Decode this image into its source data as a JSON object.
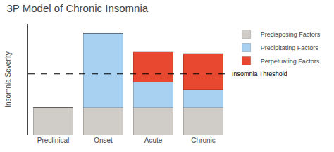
{
  "chart_data": {
    "type": "bar",
    "title": "3P Model of Chronic Insomnia",
    "ylabel": "Insomnia Severity",
    "categories": [
      "Preclinical",
      "Onset",
      "Acute",
      "Chronic"
    ],
    "series": [
      {
        "name": "Predisposing Factors",
        "color": "#d0cdc8",
        "values": [
          1.2,
          1.2,
          1.2,
          1.2
        ]
      },
      {
        "name": "Precipitating Factors",
        "color": "#a8d0f0",
        "values": [
          0.0,
          3.2,
          1.1,
          0.75
        ]
      },
      {
        "name": "Perpetuating Factors",
        "color": "#e84830",
        "values": [
          0.0,
          0.0,
          1.3,
          1.55
        ]
      }
    ],
    "stacked": true,
    "ylim": [
      0,
      4.8
    ],
    "yticks": [],
    "tick_labels": "x",
    "grid": false,
    "legend": "upper right",
    "annotations": [
      {
        "text": "Insomnia Threshold",
        "y": 2.65,
        "line_style": "dashed"
      }
    ]
  }
}
